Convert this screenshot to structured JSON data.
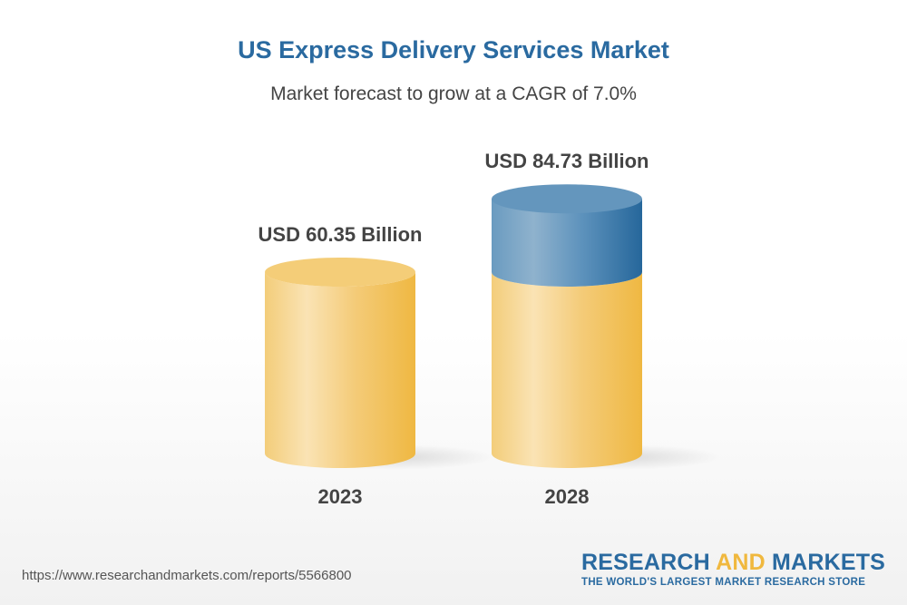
{
  "chart_data": {
    "type": "bar",
    "style": "3d-cylinder",
    "title": "US Express Delivery Services Market",
    "subtitle": "Market forecast to grow at a CAGR of 7.0%",
    "categories": [
      "2023",
      "2028"
    ],
    "values": [
      60.35,
      84.73
    ],
    "data_labels": [
      "USD 60.35 Billion",
      "USD 84.73 Billion"
    ],
    "unit": "USD Billion",
    "grid": false,
    "colors": {
      "base": "#f2c25a",
      "growth": "#3e78a8",
      "title": "#2a6aa0"
    }
  },
  "footer": {
    "url": "https://www.researchandmarkets.com/reports/5566800",
    "logo_part1": "RESEARCH ",
    "logo_part2": "AND",
    "logo_part3": " MARKETS",
    "logo_tagline": "THE WORLD'S LARGEST MARKET RESEARCH STORE"
  }
}
